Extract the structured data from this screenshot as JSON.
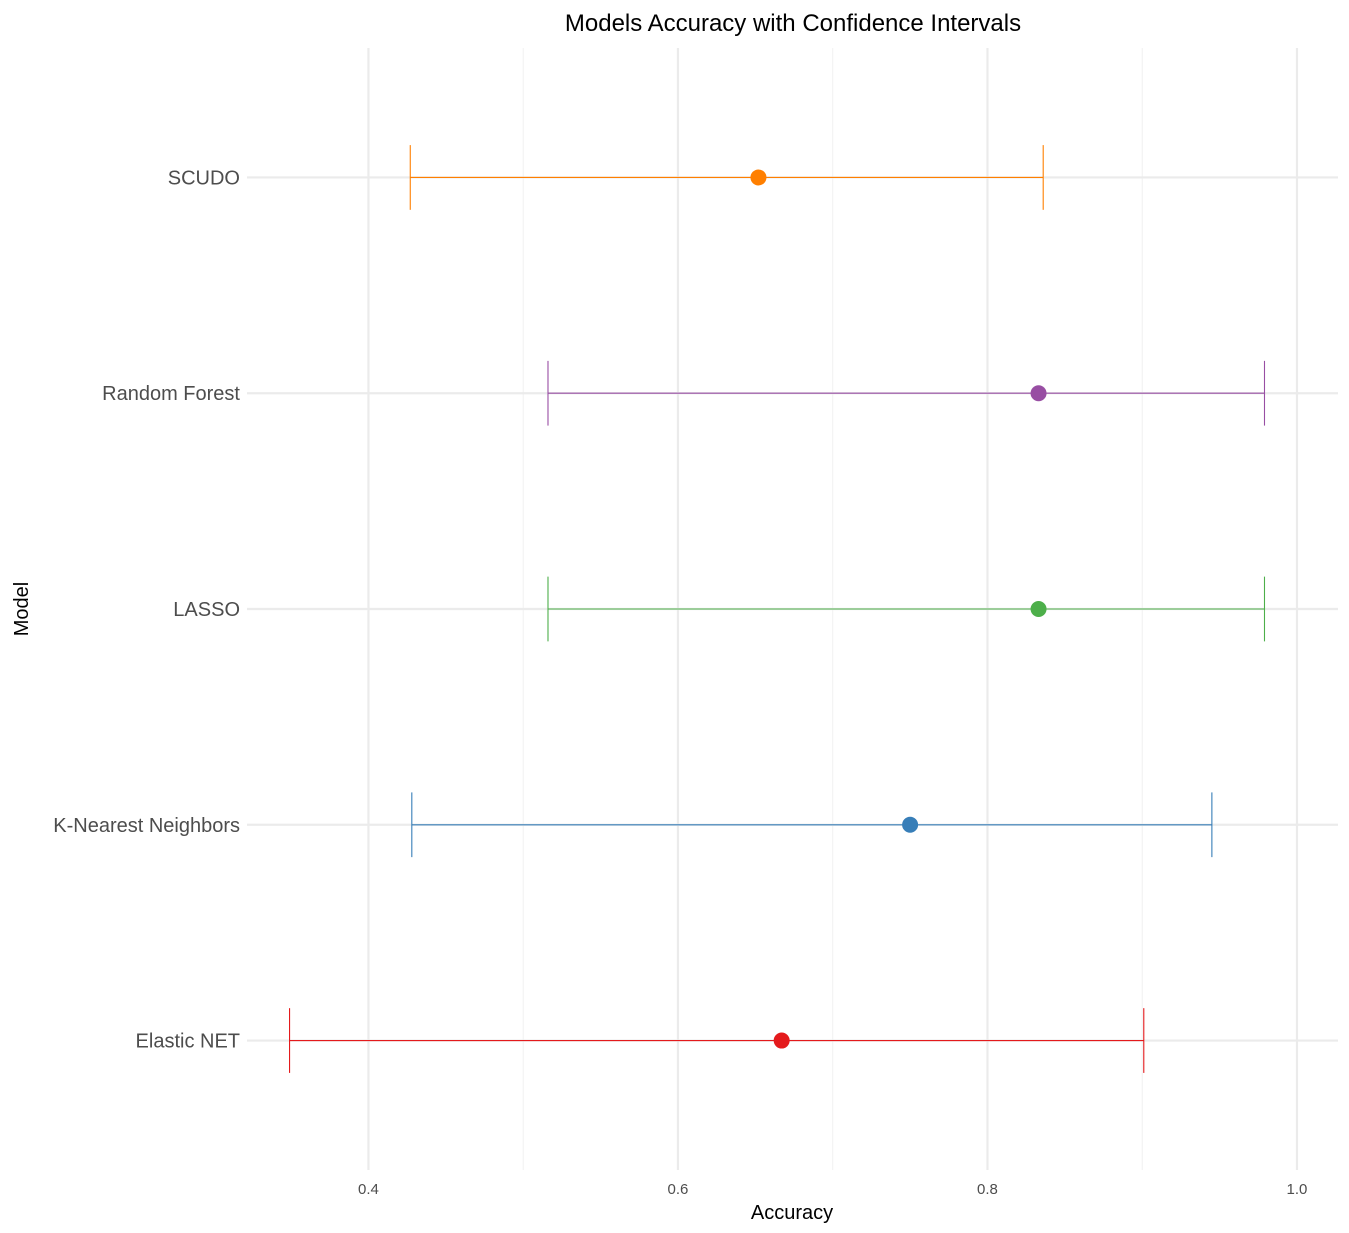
{
  "chart_data": {
    "type": "errorbar",
    "title": "Models Accuracy with Confidence Intervals",
    "xlabel": "Accuracy",
    "ylabel": "Model",
    "xlim": [
      0.3215,
      1.0265
    ],
    "x_ticks": [
      0.4,
      0.6,
      0.8,
      1.0
    ],
    "x_tick_labels": [
      "0.4",
      "0.6",
      "0.8",
      "1.0"
    ],
    "x_minor_ticks": [
      0.5,
      0.7,
      0.9
    ],
    "categories": [
      "Elastic NET",
      "K-Nearest Neighbors",
      "LASSO",
      "Random Forest",
      "SCUDO"
    ],
    "grid": true,
    "legend": "none",
    "series": [
      {
        "model": "Elastic NET",
        "accuracy": 0.667,
        "lower": 0.349,
        "upper": 0.901,
        "color": "#e41a1c"
      },
      {
        "model": "K-Nearest Neighbors",
        "accuracy": 0.75,
        "lower": 0.428,
        "upper": 0.945,
        "color": "#377eb8"
      },
      {
        "model": "LASSO",
        "accuracy": 0.833,
        "lower": 0.516,
        "upper": 0.979,
        "color": "#4daf4a"
      },
      {
        "model": "Random Forest",
        "accuracy": 0.833,
        "lower": 0.516,
        "upper": 0.979,
        "color": "#984ea3"
      },
      {
        "model": "SCUDO",
        "accuracy": 0.652,
        "lower": 0.427,
        "upper": 0.836,
        "color": "#ff7f00"
      }
    ]
  }
}
